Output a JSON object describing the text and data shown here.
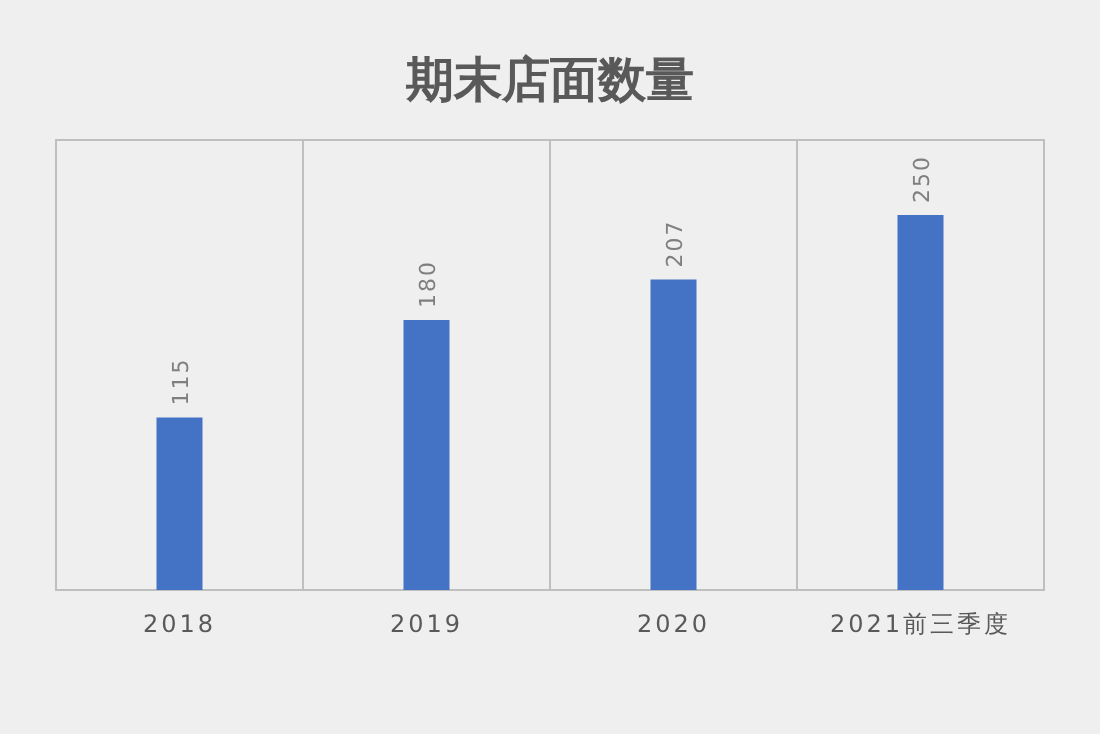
{
  "chart_data": {
    "type": "bar",
    "title": "期末店面数量",
    "categories": [
      "2018",
      "2019",
      "2020",
      "2021前三季度"
    ],
    "values": [
      115,
      180,
      207,
      250
    ],
    "color": "#4472c4",
    "data_labels": true,
    "grid": "x",
    "tick_labels": "x"
  }
}
